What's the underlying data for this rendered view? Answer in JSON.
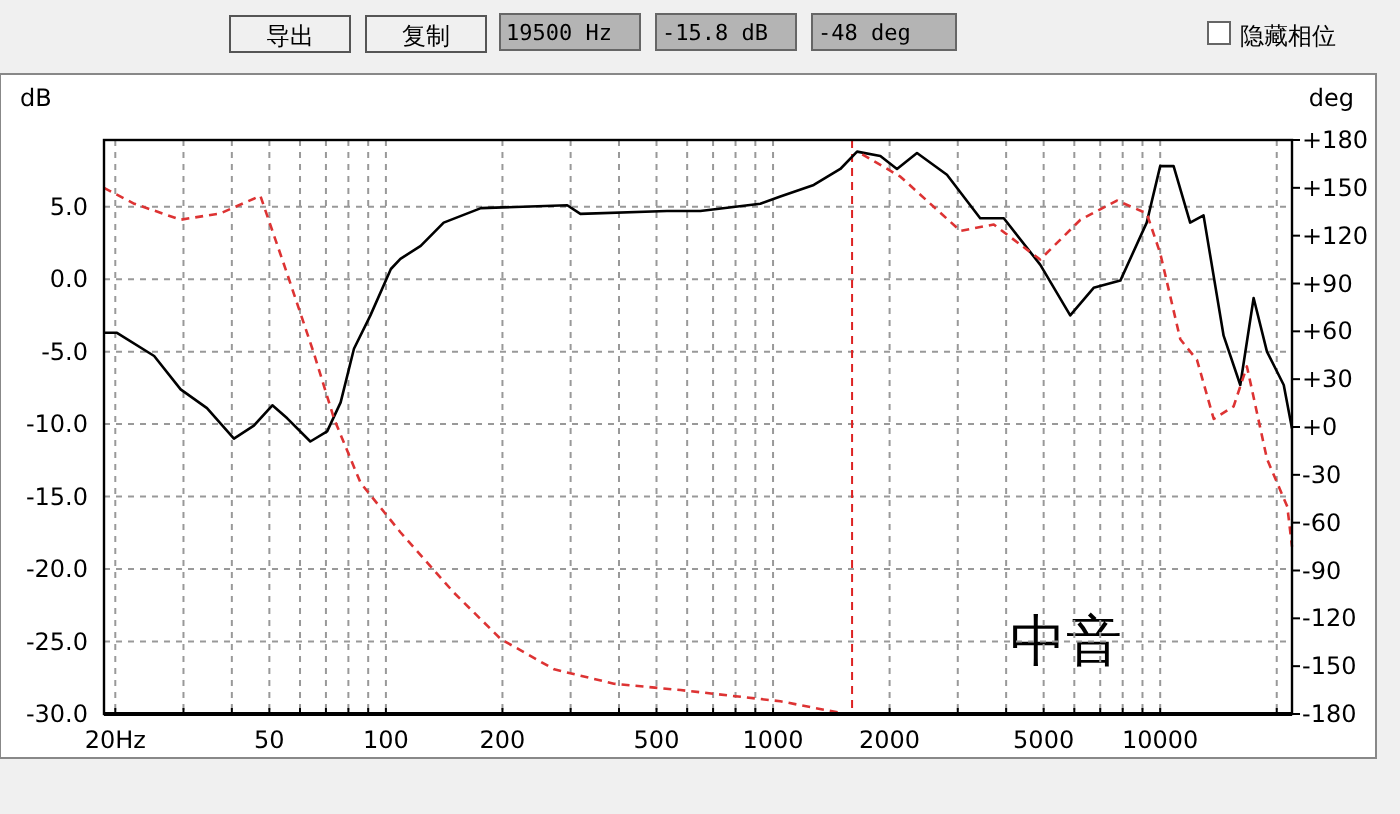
{
  "chart_data": {
    "type": "line",
    "xlabel": null,
    "ylabel": "dB",
    "y2label": "deg",
    "annotations": [
      "导出",
      "复制",
      "19500 Hz",
      "-15.8 dB",
      "-48 deg",
      "隐藏相位",
      "中音"
    ],
    "log": "x",
    "grid": true,
    "xlim": [
      18.7,
      21900
    ],
    "xticks": [
      {
        "value": 20,
        "label": "20Hz"
      },
      {
        "value": 30,
        "label": null
      },
      {
        "value": 40,
        "label": null
      },
      50,
      {
        "value": 60,
        "label": null
      },
      {
        "value": 70,
        "label": null
      },
      {
        "value": 80,
        "label": null
      },
      {
        "value": 90,
        "label": null
      },
      100,
      200,
      {
        "value": 300,
        "label": null
      },
      {
        "value": 400,
        "label": null
      },
      500,
      {
        "value": 600,
        "label": null
      },
      {
        "value": 700,
        "label": null
      },
      {
        "value": 800,
        "label": null
      },
      {
        "value": 900,
        "label": null
      },
      1000,
      2000,
      {
        "value": 3000,
        "label": null
      },
      {
        "value": 4000,
        "label": null
      },
      5000,
      {
        "value": 6000,
        "label": null
      },
      {
        "value": 7000,
        "label": null
      },
      {
        "value": 8000,
        "label": null
      },
      {
        "value": 9000,
        "label": null
      },
      10000,
      {
        "value": 20000,
        "label": null
      }
    ],
    "ylim": [
      -30,
      9.6
    ],
    "yticks": [
      {
        "value": 5,
        "label": "5.0"
      },
      {
        "value": 0,
        "label": "0.0"
      },
      {
        "value": -5,
        "label": "-5.0"
      },
      {
        "value": -10,
        "label": "-10.0"
      },
      {
        "value": -15,
        "label": "-15.0"
      },
      {
        "value": -20,
        "label": "-20.0"
      },
      {
        "value": -25,
        "label": "-25.0"
      },
      {
        "value": -30,
        "label": "-30.0"
      }
    ],
    "y2lim": [
      -180,
      180
    ],
    "y2ticks": [
      {
        "value": 180,
        "label": "+180"
      },
      {
        "value": 150,
        "label": "+150"
      },
      {
        "value": 120,
        "label": "+120"
      },
      {
        "value": 90,
        "label": "+90"
      },
      {
        "value": 60,
        "label": "+60"
      },
      {
        "value": 30,
        "label": "+30"
      },
      {
        "value": 0,
        "label": "+0"
      },
      -30,
      -60,
      -90,
      -120,
      -150,
      -180
    ],
    "ref_lines": [
      {
        "axis": "x",
        "value": 1600,
        "color": "#dd2222",
        "line_style": "dashed"
      }
    ],
    "series": [
      {
        "color": "#000000",
        "line_style": "solid",
        "x": [
          18.7,
          20.2,
          25.2,
          29.5,
          34.5,
          40.5,
          45.6,
          50.9,
          55.6,
          63.8,
          70.5,
          76.4,
          82.7,
          91.2,
          103,
          109,
          123,
          141,
          176,
          294,
          318,
          532,
          649,
          927,
          1044,
          1274,
          1492,
          1648,
          1893,
          2090,
          2354,
          2813,
          3428,
          3945,
          4898,
          5856,
          6731,
          7889,
          9230,
          10000,
          10830,
          11950,
          12940,
          14580,
          16100,
          17430,
          18870,
          20850,
          21900
        ],
        "values": [
          -3.7,
          -3.7,
          -5.3,
          -7.6,
          -8.9,
          -11.0,
          -10.1,
          -8.7,
          -9.6,
          -11.2,
          -10.5,
          -8.5,
          -4.8,
          -2.5,
          0.7,
          1.4,
          2.3,
          3.9,
          4.9,
          5.1,
          4.5,
          4.7,
          4.7,
          5.2,
          5.7,
          6.5,
          7.6,
          8.8,
          8.5,
          7.6,
          8.7,
          7.2,
          4.2,
          4.2,
          1.0,
          -2.5,
          -0.6,
          -0.1,
          3.9,
          7.8,
          7.8,
          3.9,
          4.4,
          -3.9,
          -7.3,
          -1.3,
          -5.0,
          -7.3,
          -10.3
        ]
      },
      {
        "color": "#dd3333",
        "axis": "y2",
        "line_style": "dashed",
        "x": [
          18.7,
          22.4,
          29.5,
          37.4,
          47.4,
          55.6,
          65.2,
          73.5,
          86,
          109,
          150,
          198,
          272,
          388,
          577,
          1044,
          1544,
          1600,
          1700,
          2133,
          3047,
          3716,
          4898,
          6223,
          7730,
          9230,
          10000,
          11270,
          12450,
          13750,
          15480,
          16750,
          18870,
          21300,
          21900
        ],
        "values": [
          150,
          140,
          130,
          134,
          145,
          96,
          46,
          5,
          -35,
          -66,
          -104,
          -133,
          -152,
          -161,
          -165,
          -172,
          -180,
          null,
          171,
          157,
          123,
          127,
          105,
          130,
          142,
          134,
          109,
          55,
          42,
          5,
          13,
          38,
          -20,
          -50,
          -75
        ]
      }
    ]
  }
}
